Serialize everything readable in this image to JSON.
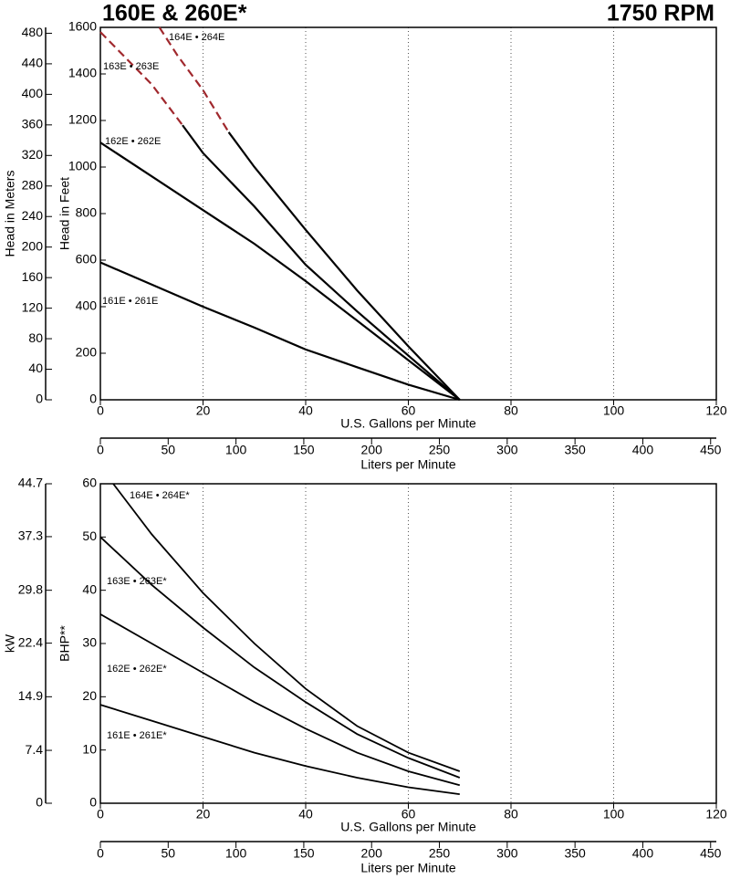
{
  "header": {
    "title": "160E & 260E*",
    "subtitle": "1750 RPM"
  },
  "chart_data": [
    {
      "type": "line",
      "xlabel": "U.S. Gallons per Minute",
      "ylabel": "Head in Feet",
      "y2label": "Head in Meters",
      "x2label": "Liters per Minute",
      "xlim": [
        0,
        120
      ],
      "xticks": [
        0,
        20,
        40,
        60,
        80,
        100,
        120
      ],
      "ylim": [
        0,
        1600
      ],
      "yticks": [
        0,
        200,
        400,
        600,
        800,
        1000,
        1200,
        1400,
        1600
      ],
      "y2lim": [
        0,
        487.7
      ],
      "y2ticks": [
        0,
        40,
        80,
        120,
        160,
        200,
        240,
        280,
        320,
        360,
        400,
        440,
        480
      ],
      "x2lim": [
        0,
        454.2
      ],
      "x2ticks": [
        0,
        50,
        100,
        150,
        200,
        250,
        300,
        350,
        400,
        450
      ],
      "grid": "x",
      "series": [
        {
          "name": "164E • 264E",
          "color": "#000000",
          "dashed_color": "#a0282d",
          "dashed_to_x": 25,
          "x": [
            11.5,
            15,
            20,
            25,
            30,
            40,
            50,
            60,
            70
          ],
          "values": [
            1600,
            1480,
            1330,
            1150,
            1000,
            730,
            470,
            230,
            0
          ]
        },
        {
          "name": "163E • 263E",
          "color": "#000000",
          "dashed_color": "#a0282d",
          "dashed_to_x": 16,
          "x": [
            0,
            10,
            16,
            20,
            30,
            40,
            50,
            60,
            70
          ],
          "values": [
            1580,
            1355,
            1180,
            1060,
            830,
            580,
            380,
            190,
            0
          ]
        },
        {
          "name": "162E • 262E",
          "color": "#000000",
          "x": [
            0,
            10,
            20,
            30,
            40,
            50,
            60,
            70
          ],
          "values": [
            1105,
            960,
            815,
            670,
            510,
            340,
            170,
            0
          ]
        },
        {
          "name": "161E • 261E",
          "color": "#000000",
          "x": [
            0,
            10,
            20,
            30,
            40,
            50,
            60,
            70
          ],
          "values": [
            590,
            495,
            400,
            310,
            216,
            140,
            65,
            0
          ]
        }
      ]
    },
    {
      "type": "line",
      "xlabel": "U.S. Gallons per Minute",
      "ylabel": "BHP**",
      "y2label": "kW",
      "x2label": "Liters per Minute",
      "xlim": [
        0,
        120
      ],
      "xticks": [
        0,
        20,
        40,
        60,
        80,
        100,
        120
      ],
      "ylim": [
        0,
        60
      ],
      "yticks": [
        0,
        10,
        20,
        30,
        40,
        50,
        60
      ],
      "y2lim": [
        0,
        44.7
      ],
      "y2ticks": [
        0,
        7.4,
        14.9,
        22.4,
        29.8,
        37.3,
        44.7
      ],
      "x2lim": [
        0,
        454.2
      ],
      "x2ticks": [
        0,
        50,
        100,
        150,
        200,
        250,
        300,
        350,
        400,
        450
      ],
      "grid": "x",
      "series": [
        {
          "name": "164E • 264E*",
          "color": "#000000",
          "x": [
            2.5,
            10,
            20,
            30,
            40,
            50,
            60,
            70
          ],
          "values": [
            60,
            50.5,
            39.5,
            30,
            21.5,
            14.5,
            9.5,
            6
          ]
        },
        {
          "name": "163E • 263E*",
          "color": "#000000",
          "x": [
            0,
            10,
            20,
            30,
            40,
            50,
            60,
            70
          ],
          "values": [
            50,
            41,
            33,
            25.5,
            19,
            13,
            8.5,
            4.8
          ]
        },
        {
          "name": "162E • 262E*",
          "color": "#000000",
          "x": [
            0,
            10,
            20,
            30,
            40,
            50,
            60,
            70
          ],
          "values": [
            35.5,
            30,
            24.5,
            19,
            14,
            9.5,
            6,
            3.4
          ]
        },
        {
          "name": "161E • 261E*",
          "color": "#000000",
          "x": [
            0,
            10,
            20,
            30,
            40,
            50,
            60,
            70
          ],
          "values": [
            18.5,
            15.5,
            12.5,
            9.5,
            7,
            4.8,
            3,
            1.7
          ]
        }
      ]
    }
  ]
}
